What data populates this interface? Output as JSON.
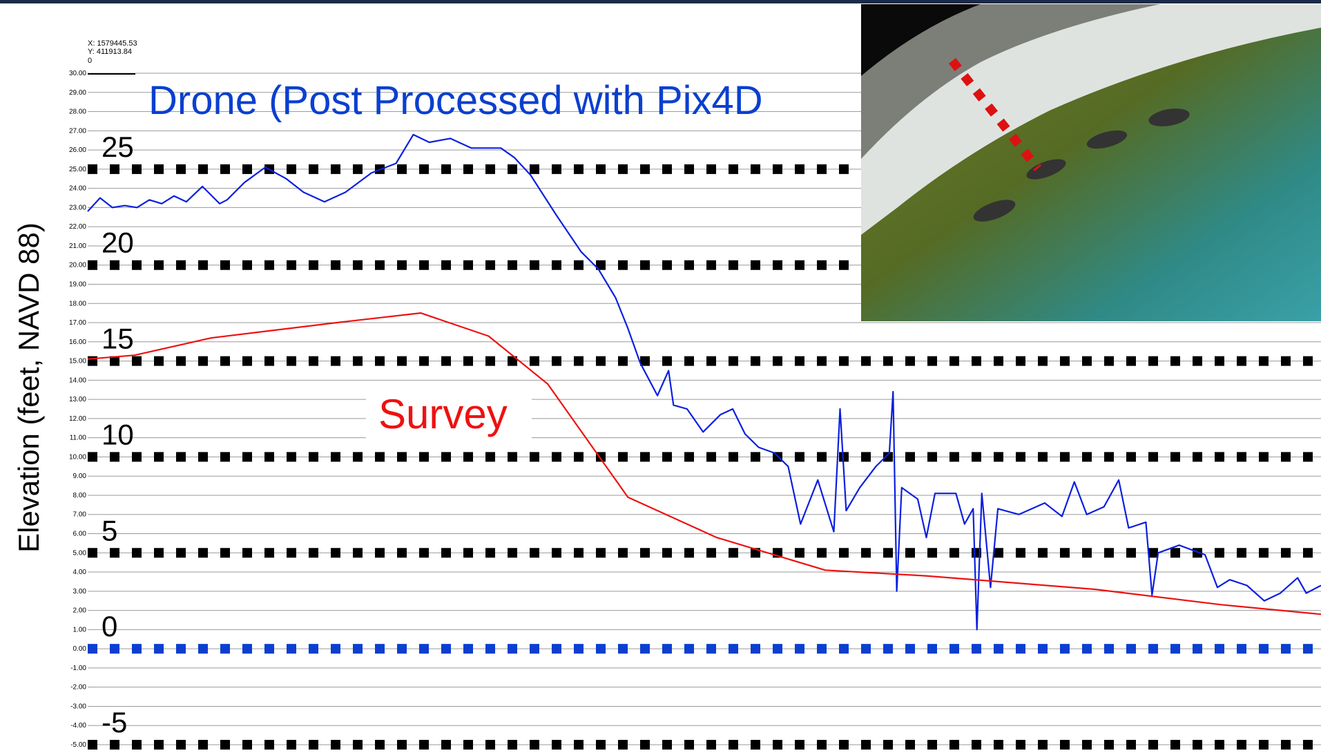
{
  "chart_data": {
    "type": "line",
    "y_label": "Elevation (feet, NAVD 88)",
    "cursor_readout": [
      "X: 1579445.53",
      "Y: 411913.84",
      "0"
    ],
    "xlim": [
      0,
      100
    ],
    "ylim": [
      -5,
      30
    ],
    "yticks": [
      {
        "value": 30,
        "label": "30.00"
      },
      {
        "value": 29,
        "label": "29.00"
      },
      {
        "value": 28,
        "label": "28.00"
      },
      {
        "value": 27,
        "label": "27.00"
      },
      {
        "value": 26,
        "label": "26.00"
      },
      {
        "value": 25,
        "label": "25.00"
      },
      {
        "value": 24,
        "label": "24.00"
      },
      {
        "value": 23,
        "label": "23.00"
      },
      {
        "value": 22,
        "label": "22.00"
      },
      {
        "value": 21,
        "label": "21.00"
      },
      {
        "value": 20,
        "label": "20.00"
      },
      {
        "value": 19,
        "label": "19.00"
      },
      {
        "value": 18,
        "label": "18.00"
      },
      {
        "value": 17,
        "label": "17.00"
      },
      {
        "value": 16,
        "label": "16.00"
      },
      {
        "value": 15,
        "label": "15.00"
      },
      {
        "value": 14,
        "label": "14.00"
      },
      {
        "value": 13,
        "label": "13.00"
      },
      {
        "value": 12,
        "label": "12.00"
      },
      {
        "value": 11,
        "label": "11.00"
      },
      {
        "value": 10,
        "label": "10.00"
      },
      {
        "value": 9,
        "label": "9.00"
      },
      {
        "value": 8,
        "label": "8.00"
      },
      {
        "value": 7,
        "label": "7.00"
      },
      {
        "value": 6,
        "label": "6.00"
      },
      {
        "value": 5,
        "label": "5.00"
      },
      {
        "value": 4,
        "label": "4.00"
      },
      {
        "value": 3,
        "label": "3.00"
      },
      {
        "value": 2,
        "label": "2.00"
      },
      {
        "value": 1,
        "label": "1.00"
      },
      {
        "value": 0,
        "label": "0.00"
      },
      {
        "value": -1,
        "label": "-1.00"
      },
      {
        "value": -2,
        "label": "-2.00"
      },
      {
        "value": -3,
        "label": "-3.00"
      },
      {
        "value": -4,
        "label": "-4.00"
      },
      {
        "value": -5,
        "label": "-5.00"
      }
    ],
    "major_yticks": [
      25,
      20,
      15,
      10,
      5,
      0,
      -5
    ],
    "major_grid_color": "#000000",
    "zero_line_color": "#0a3fd0",
    "grid": true,
    "series": [
      {
        "name": "Drone (Post Processed with Pix4D",
        "color": "#0a1fe0",
        "x": [
          0,
          1,
          2,
          3,
          4,
          5,
          6,
          7,
          8,
          9.3,
          10.7,
          11.3,
          12.7,
          14.4,
          16.1,
          17.5,
          19.2,
          20.9,
          23.0,
          25.0,
          26.4,
          27.7,
          29.4,
          31.1,
          33.5,
          34.6,
          35.9,
          38.0,
          40.0,
          41.4,
          42.8,
          43.8,
          44.8,
          46.2,
          47.1,
          47.5,
          48.6,
          49.9,
          51.3,
          52.3,
          53.3,
          54.4,
          55.7,
          56.8,
          57.8,
          59.2,
          60.5,
          61.0,
          61.5,
          62.6,
          63.9,
          65.0,
          65.3,
          65.6,
          66.0,
          67.3,
          68.0,
          68.7,
          70.4,
          71.1,
          71.8,
          72.1,
          72.5,
          73.2,
          73.8,
          75.5,
          77.6,
          79.0,
          80.0,
          81.0,
          82.4,
          83.6,
          84.4,
          85.8,
          86.3,
          86.8,
          88.5,
          90.6,
          91.6,
          92.6,
          94.0,
          95.4,
          96.7,
          98.1,
          98.8,
          100
        ],
        "values": [
          22.8,
          23.5,
          23.0,
          23.1,
          23.0,
          23.4,
          23.2,
          23.6,
          23.3,
          24.1,
          23.2,
          23.4,
          24.3,
          25.1,
          24.5,
          23.8,
          23.3,
          23.8,
          24.8,
          25.3,
          26.8,
          26.4,
          26.6,
          26.1,
          26.1,
          25.6,
          24.7,
          22.6,
          20.7,
          19.8,
          18.3,
          16.7,
          14.9,
          13.2,
          14.5,
          12.7,
          12.5,
          11.3,
          12.2,
          12.5,
          11.2,
          10.5,
          10.2,
          9.5,
          6.5,
          8.8,
          6.1,
          12.5,
          7.2,
          8.4,
          9.5,
          10.2,
          13.4,
          3.0,
          8.4,
          7.8,
          5.8,
          8.1,
          8.1,
          6.5,
          7.3,
          1.0,
          8.1,
          3.2,
          7.3,
          7.0,
          7.6,
          6.9,
          8.7,
          7.0,
          7.4,
          8.8,
          6.3,
          6.6,
          2.8,
          5.0,
          5.4,
          4.9,
          3.2,
          3.6,
          3.3,
          2.5,
          2.9,
          3.7,
          2.9,
          3.3
        ]
      },
      {
        "name": "Survey",
        "color": "#ee1111",
        "x": [
          0,
          3.8,
          10.0,
          20.2,
          27.0,
          32.5,
          37.3,
          43.8,
          51.0,
          59.8,
          68.0,
          81.7,
          91.9,
          100
        ],
        "values": [
          15.1,
          15.3,
          16.2,
          17.0,
          17.5,
          16.3,
          13.8,
          7.9,
          5.8,
          4.1,
          3.8,
          3.1,
          2.3,
          1.8
        ]
      }
    ]
  }
}
